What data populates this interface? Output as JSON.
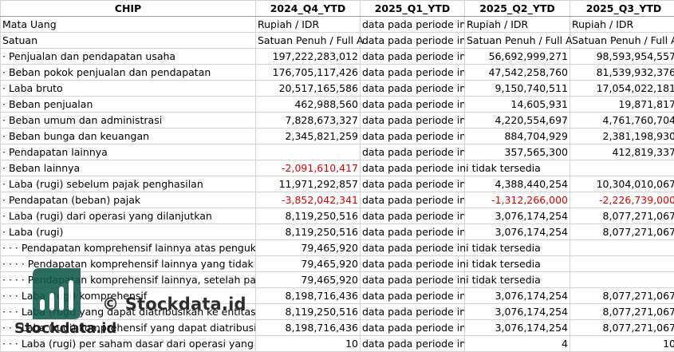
{
  "header": [
    "CHIP",
    "2024_Q4_YTD",
    "2025_Q1_YTD",
    "2025_Q2_YTD",
    "2025_Q3_YTD"
  ],
  "rows": [
    {
      "label": "Mata Uang",
      "cells": [
        "Rupiah / IDR",
        "data pada periode in",
        "Rupiah / IDR",
        "Rupiah / IDR"
      ],
      "types": [
        "txt",
        "txt",
        "txt",
        "txt"
      ]
    },
    {
      "label": "Satuan",
      "cells": [
        "Satuan Penuh / Full A",
        "data pada periode in",
        "Satuan Penuh / Full A",
        "Satuan Penuh / Full A"
      ],
      "types": [
        "txt",
        "txt",
        "txt",
        "txt"
      ]
    },
    {
      "label": "· Penjualan dan pendapatan usaha",
      "cells": [
        "197,222,283,012",
        "data pada periode in",
        "56,692,999,271",
        "98,593,954,557"
      ],
      "types": [
        "num",
        "txt",
        "num",
        "num"
      ]
    },
    {
      "label": "· Beban pokok penjualan dan pendapatan",
      "cells": [
        "176,705,117,426",
        "data pada periode in",
        "47,542,258,760",
        "81,539,932,376"
      ],
      "types": [
        "num",
        "txt",
        "num",
        "num"
      ]
    },
    {
      "label": "· Laba bruto",
      "cells": [
        "20,517,165,586",
        "data pada periode in",
        "9,150,740,511",
        "17,054,022,181"
      ],
      "types": [
        "num",
        "txt",
        "num",
        "num"
      ]
    },
    {
      "label": "· Beban penjualan",
      "cells": [
        "462,988,560",
        "data pada periode in",
        "14,605,931",
        "19,871,817"
      ],
      "types": [
        "num",
        "txt",
        "num",
        "num"
      ]
    },
    {
      "label": "· Beban umum dan administrasi",
      "cells": [
        "7,828,673,327",
        "data pada periode in",
        "4,220,554,697",
        "4,761,760,704"
      ],
      "types": [
        "num",
        "txt",
        "num",
        "num"
      ]
    },
    {
      "label": "· Beban bunga dan keuangan",
      "cells": [
        "2,345,821,259",
        "data pada periode in",
        "884,704,929",
        "2,381,198,930"
      ],
      "types": [
        "num",
        "txt",
        "num",
        "num"
      ]
    },
    {
      "label": "· Pendapatan lainnya",
      "cells": [
        "",
        "data pada periode in",
        "357,565,300",
        "412,819,337"
      ],
      "types": [
        "num",
        "txt",
        "num",
        "num"
      ]
    },
    {
      "label": "· Beban lainnya",
      "cells": [
        "-2,091,610,417",
        "data pada periode ini tidak tersedia",
        "",
        ""
      ],
      "types": [
        "neg",
        "txt",
        "num",
        "num"
      ]
    },
    {
      "label": "· Laba (rugi) sebelum pajak penghasilan",
      "cells": [
        "11,971,292,857",
        "data pada periode in",
        "4,388,440,254",
        "10,304,010,067"
      ],
      "types": [
        "num",
        "txt",
        "num",
        "num"
      ]
    },
    {
      "label": "· Pendapatan (beban) pajak",
      "cells": [
        "-3,852,042,341",
        "data pada periode in",
        "-1,312,266,000",
        "-2,226,739,000"
      ],
      "types": [
        "neg",
        "txt",
        "neg",
        "neg"
      ]
    },
    {
      "label": "· Laba (rugi) dari operasi yang dilanjutkan",
      "cells": [
        "8,119,250,516",
        "data pada periode in",
        "3,076,174,254",
        "8,077,271,067"
      ],
      "types": [
        "num",
        "txt",
        "num",
        "num"
      ]
    },
    {
      "label": "· Laba (rugi)",
      "cells": [
        "8,119,250,516",
        "data pada periode in",
        "3,076,174,254",
        "8,077,271,067"
      ],
      "types": [
        "num",
        "txt",
        "num",
        "num"
      ]
    },
    {
      "label": "· · · Pendapatan komprehensif lainnya atas penguku",
      "cells": [
        "79,465,920",
        "data pada periode ini tidak tersedia",
        "",
        ""
      ],
      "types": [
        "num",
        "txt",
        "num",
        "num"
      ]
    },
    {
      "label": "· · · · Pendapatan komprehensif lainnya yang tidak ak",
      "cells": [
        "79,465,920",
        "data pada periode ini tidak tersedia",
        "",
        ""
      ],
      "types": [
        "num",
        "txt",
        "num",
        "num"
      ]
    },
    {
      "label": "· · · · Pendapatan komprehensif lainnya, setelah pajak",
      "cells": [
        "79,465,920",
        "data pada periode ini tidak tersedia",
        "",
        ""
      ],
      "types": [
        "num",
        "txt",
        "num",
        "num"
      ]
    },
    {
      "label": "· · · Laba (rugi) komprehensif",
      "cells": [
        "8,198,716,436",
        "data pada periode in",
        "3,076,174,254",
        "8,077,271,067"
      ],
      "types": [
        "num",
        "txt",
        "num",
        "num"
      ]
    },
    {
      "label": "· · · Laba (rugi) yang dapat diatribusikan ke entitas ind",
      "cells": [
        "8,119,250,516",
        "data pada periode in",
        "3,076,174,254",
        "8,077,271,067"
      ],
      "types": [
        "num",
        "txt",
        "num",
        "num"
      ]
    },
    {
      "label": "· · · Laba (rugi) komprehensif yang dapat diatribusikan",
      "cells": [
        "8,198,716,436",
        "data pada periode in",
        "3,076,174,254",
        "8,077,271,067"
      ],
      "types": [
        "num",
        "txt",
        "num",
        "num"
      ]
    },
    {
      "label": "· · · Laba (rugi) per saham dasar dari operasi yang dil",
      "cells": [
        "10",
        "data pada periode in",
        "4",
        "10"
      ],
      "types": [
        "num",
        "txt",
        "num",
        "num"
      ]
    }
  ],
  "watermark": {
    "text": "© Stockdata.id",
    "brand": "Stockdata.id",
    "logo_color": "#0f5a4a",
    "logo_icon": "bar-chart-logo"
  },
  "colors": {
    "negative": "#e00000",
    "gridline": "#d4d4d4"
  }
}
